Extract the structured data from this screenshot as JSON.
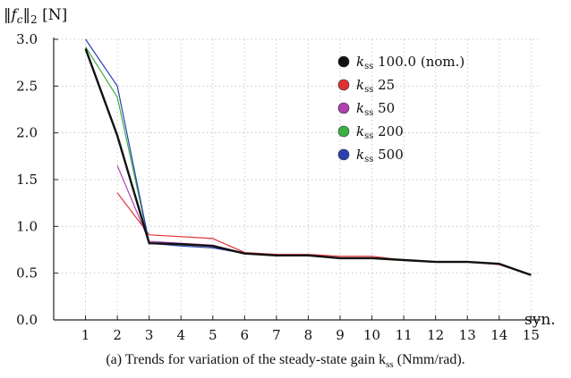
{
  "chart_data": {
    "type": "line",
    "ylabel": "‖f_c‖₂ [N]",
    "xlabel": "syn.",
    "x": [
      1,
      2,
      3,
      4,
      5,
      6,
      7,
      8,
      9,
      10,
      11,
      12,
      13,
      14,
      15
    ],
    "xticks": [
      "1",
      "2",
      "3",
      "4",
      "5",
      "6",
      "7",
      "8",
      "9",
      "10",
      "11",
      "12",
      "13",
      "14",
      "15"
    ],
    "yticks": [
      "0.0",
      "0.5",
      "1.0",
      "1.5",
      "2.0",
      "2.5",
      "3.0"
    ],
    "ylim": [
      0,
      3.0
    ],
    "xlim": [
      0,
      15.3
    ],
    "grid": true,
    "legend_placement": "top-right",
    "series": [
      {
        "name": "k_ss 100.0 (nom.)",
        "legend_sub": "ss",
        "legend_rest": "100.0 (nom.)",
        "color": "#111111",
        "width": 2.4,
        "values": [
          2.9,
          1.97,
          0.82,
          0.81,
          0.79,
          0.71,
          0.69,
          0.69,
          0.66,
          0.66,
          0.64,
          0.62,
          0.62,
          0.6,
          0.48
        ]
      },
      {
        "name": "k_ss 25",
        "legend_sub": "ss",
        "legend_rest": "25",
        "color": "#e03030",
        "width": 1.2,
        "values": [
          null,
          1.36,
          0.91,
          0.89,
          0.87,
          0.72,
          0.7,
          0.7,
          0.68,
          0.68,
          0.64,
          0.62,
          0.62,
          0.59,
          0.48
        ]
      },
      {
        "name": "k_ss 50",
        "legend_sub": "ss",
        "legend_rest": "50",
        "color": "#b040b0",
        "width": 1.2,
        "values": [
          null,
          1.65,
          0.84,
          0.82,
          0.8,
          0.71,
          0.69,
          0.69,
          0.66,
          0.66,
          0.64,
          0.62,
          0.62,
          0.6,
          0.48
        ]
      },
      {
        "name": "k_ss 200",
        "legend_sub": "ss",
        "legend_rest": "200",
        "color": "#3cb043",
        "width": 1.2,
        "values": [
          2.92,
          2.38,
          0.82,
          0.8,
          0.79,
          0.71,
          0.69,
          0.69,
          0.66,
          0.66,
          0.64,
          0.62,
          0.62,
          0.6,
          0.48
        ]
      },
      {
        "name": "k_ss 500",
        "legend_sub": "ss",
        "legend_rest": "500",
        "color": "#2b3fb0",
        "width": 1.2,
        "values": [
          3.0,
          2.5,
          0.82,
          0.79,
          0.77,
          0.71,
          0.69,
          0.69,
          0.66,
          0.66,
          0.64,
          0.62,
          0.62,
          0.6,
          0.48
        ]
      }
    ]
  },
  "caption": "(a) Trends for variation of the steady-state gain k",
  "caption_sub": "ss",
  "caption_end": " (Nmm/rad)."
}
